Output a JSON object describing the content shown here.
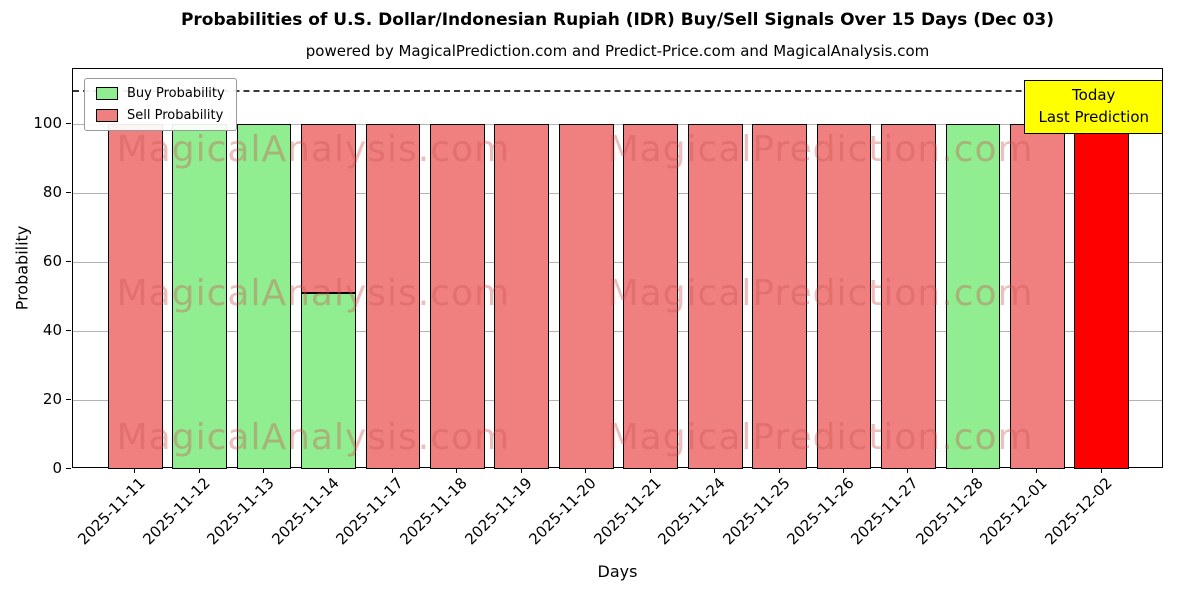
{
  "header": {
    "title": "Probabilities of U.S. Dollar/Indonesian Rupiah (IDR) Buy/Sell Signals Over 15 Days (Dec 03)",
    "subtitle": "powered by MagicalPrediction.com and Predict-Price.com and MagicalAnalysis.com"
  },
  "axes": {
    "xlabel": "Days",
    "ylabel": "Probability"
  },
  "legend": {
    "items": [
      {
        "label": "Buy Probability",
        "color": "#90EE90"
      },
      {
        "label": "Sell Probability",
        "color": "#F08080"
      }
    ]
  },
  "annotation": {
    "line1": "Today",
    "line2": "Last Prediction",
    "bg": "#FFFF00"
  },
  "watermarks": {
    "left": "MagicalAnalysis.com",
    "right": "MagicalPrediction.com"
  },
  "chart_data": {
    "type": "bar",
    "stacked": true,
    "title": "Probabilities of U.S. Dollar/Indonesian Rupiah (IDR) Buy/Sell Signals Over 15 Days (Dec 03)",
    "xlabel": "Days",
    "ylabel": "Probability",
    "ylim": [
      0,
      116
    ],
    "yticks": [
      0,
      20,
      40,
      60,
      80,
      100
    ],
    "dashed_line_y": 110,
    "grid": true,
    "legend_position": "upper left",
    "bar_edge_color": "#000000",
    "categories": [
      "2025-11-11",
      "2025-11-12",
      "2025-11-13",
      "2025-11-14",
      "2025-11-17",
      "2025-11-18",
      "2025-11-19",
      "2025-11-20",
      "2025-11-21",
      "2025-11-24",
      "2025-11-25",
      "2025-11-26",
      "2025-11-27",
      "2025-11-28",
      "2025-12-01",
      "2025-12-02"
    ],
    "series": [
      {
        "name": "Buy Probability",
        "color": "#90EE90",
        "values": [
          0,
          100,
          100,
          51,
          0,
          0,
          0,
          0,
          0,
          0,
          0,
          0,
          0,
          100,
          0,
          0
        ]
      },
      {
        "name": "Sell Probability",
        "color": "#F08080",
        "values": [
          100,
          0,
          0,
          49,
          100,
          100,
          100,
          100,
          100,
          100,
          100,
          100,
          100,
          0,
          100,
          0
        ]
      },
      {
        "name": "Today Last Prediction",
        "color": "#FF0000",
        "values": [
          0,
          0,
          0,
          0,
          0,
          0,
          0,
          0,
          0,
          0,
          0,
          0,
          0,
          0,
          0,
          100
        ]
      }
    ]
  }
}
